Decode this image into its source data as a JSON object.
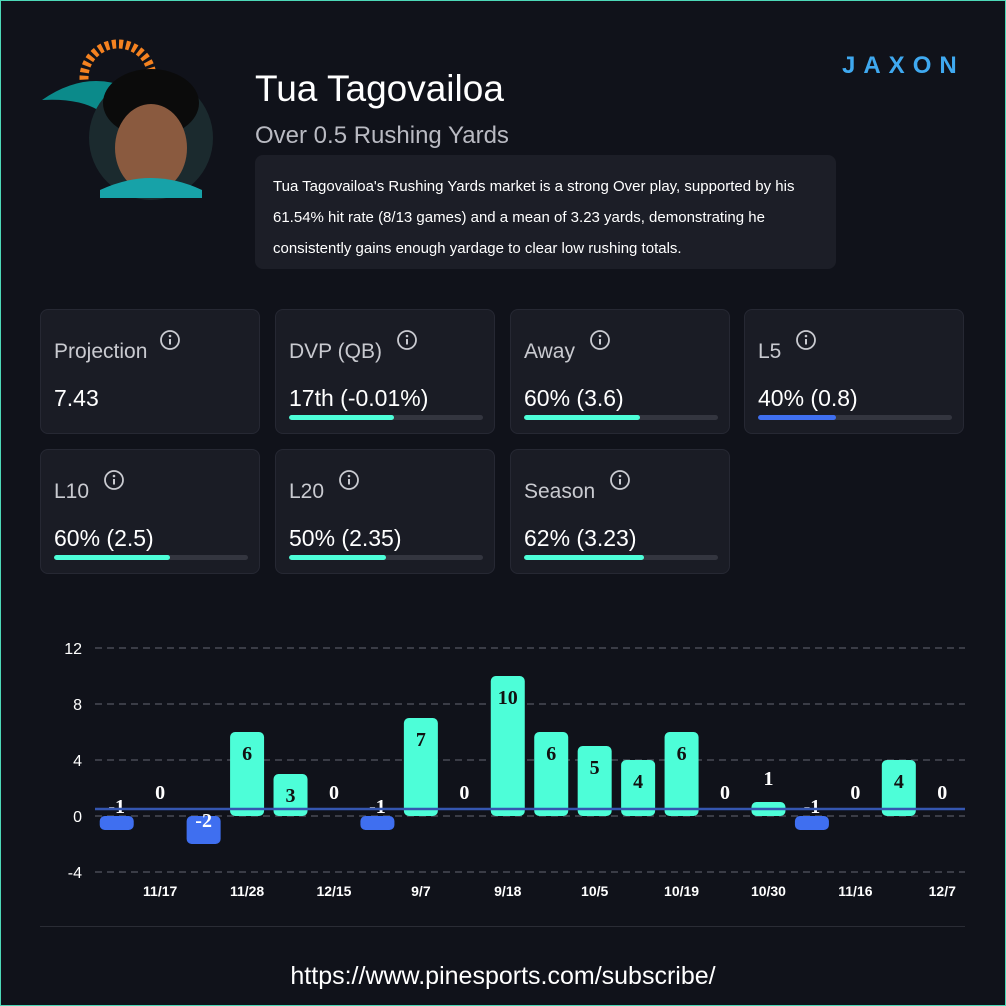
{
  "header": {
    "name": "Tua Tagovailoa",
    "market": "Over 0.5 Rushing Yards",
    "description": "Tua Tagovailoa's Rushing Yards market is a strong Over play, supported by his 61.54% hit rate (8/13 games) and a mean of 3.23 yards, demonstrating he consistently gains enough yardage to clear low rushing totals.",
    "brand": "JAXON"
  },
  "stats": {
    "bar_range": [
      0,
      100
    ],
    "cards": [
      {
        "label": "Projection",
        "value": "7.43"
      },
      {
        "label": "DVP (QB)",
        "value": "17th (-0.01%)",
        "bar": 54,
        "color": "#4dfed8"
      },
      {
        "label": "Away",
        "value": "60% (3.6)",
        "bar": 60,
        "color": "#4dfed8"
      },
      {
        "label": "L5",
        "value": "40% (0.8)",
        "bar": 40,
        "color": "#3f6ff0"
      },
      {
        "label": "L10",
        "value": "60% (2.5)",
        "bar": 60,
        "color": "#4dfed8"
      },
      {
        "label": "L20",
        "value": "50% (2.35)",
        "bar": 50,
        "color": "#4dfed8"
      },
      {
        "label": "Season",
        "value": "62% (3.23)",
        "bar": 62,
        "color": "#4dfed8"
      }
    ]
  },
  "chart_data": {
    "type": "bar",
    "categories": [
      null,
      "11/17",
      null,
      "11/28",
      null,
      "12/15",
      null,
      "9/7",
      null,
      "9/18",
      null,
      "10/5",
      null,
      "10/19",
      null,
      "10/30",
      null,
      "11/16",
      null,
      "12/7"
    ],
    "values": [
      -1,
      0,
      -2,
      6,
      3,
      0,
      -1,
      7,
      0,
      10,
      6,
      5,
      4,
      6,
      0,
      1,
      -1,
      0,
      4,
      0
    ],
    "threshold": 0.5,
    "over_color": "#4dfed8",
    "under_color": "#3f6ff0",
    "threshold_color": "#3556b0",
    "ylim": [
      -4,
      12
    ],
    "yticks": [
      -4,
      0,
      4,
      8,
      12
    ],
    "grid": true
  },
  "footer": {
    "url": "https://www.pinesports.com/subscribe/"
  }
}
